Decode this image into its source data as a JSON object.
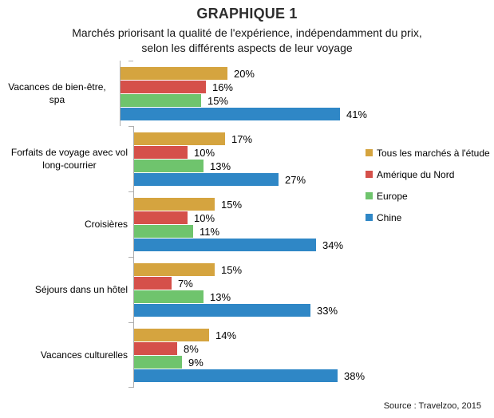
{
  "chart": {
    "title": "GRAPHIQUE 1",
    "subtitle": "Marchés priorisant la qualité de l'expérience, indépendamment du prix,\nselon les différents aspects de leur voyage",
    "source": "Source : Travelzoo, 2015"
  },
  "chart_data": {
    "type": "bar",
    "orientation": "horizontal",
    "title": "GRAPHIQUE 1",
    "subtitle": "Marchés priorisant la qualité de l'expérience, indépendamment du prix, selon les différents aspects de leur voyage",
    "categories": [
      "Vacances de bien-être, spa",
      "Forfaits de voyage avec vol\nlong-courrier",
      "Croisières",
      "Séjours dans un hôtel",
      "Vacances culturelles"
    ],
    "series": [
      {
        "name": "Tous les marchés à l'étude",
        "color": "#d5a43f",
        "values": [
          20,
          17,
          15,
          15,
          14
        ]
      },
      {
        "name": "Amérique du Nord",
        "color": "#d5504a",
        "values": [
          16,
          10,
          10,
          7,
          8
        ]
      },
      {
        "name": "Europe",
        "color": "#6fc46d",
        "values": [
          15,
          13,
          11,
          13,
          9
        ]
      },
      {
        "name": "Chine",
        "color": "#2f87c6",
        "values": [
          41,
          27,
          34,
          33,
          38
        ]
      }
    ],
    "value_suffix": "%",
    "xlim": [
      0,
      45
    ],
    "grid": false,
    "legend_position": "right",
    "axis_color": "#adadad",
    "source": "Source : Travelzoo, 2015"
  }
}
